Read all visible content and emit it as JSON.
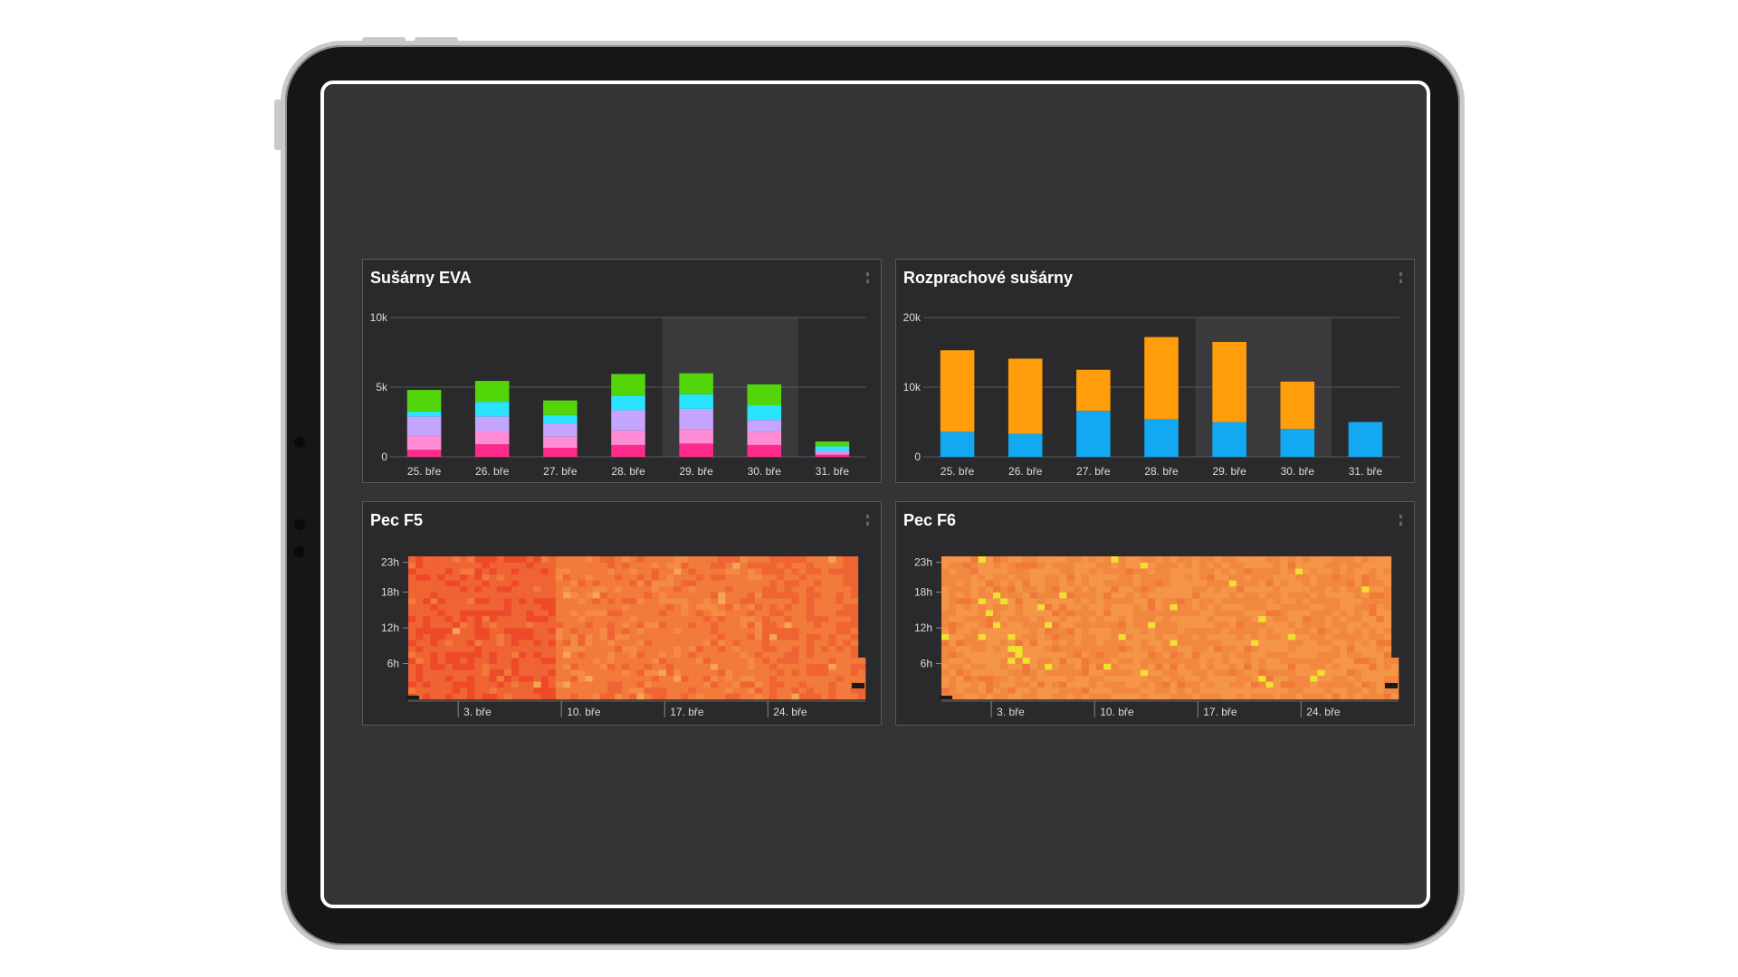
{
  "dashboard": {
    "panels": [
      {
        "title": "Sušárny EVA",
        "chart_data": {
          "type": "bar",
          "stacked": true,
          "categories": [
            "25. bře",
            "26. bře",
            "27. bře",
            "28. bře",
            "29. bře",
            "30. bře",
            "31. bře"
          ],
          "highlight_categories": [
            "29. bře",
            "30. bře"
          ],
          "y_ticks": [
            "0",
            "5k",
            "10k"
          ],
          "ylim": [
            0,
            10000
          ],
          "axis_tick_color": "#ff3b1f",
          "series": [
            {
              "color": "#ff2a8a",
              "values": [
                500,
                900,
                650,
                850,
                950,
                850,
                150
              ]
            },
            {
              "color": "#ff8cd6",
              "values": [
                1000,
                950,
                800,
                1050,
                1050,
                950,
                150
              ]
            },
            {
              "color": "#c4a6ff",
              "values": [
                1400,
                1050,
                950,
                1450,
                1450,
                850,
                150
              ]
            },
            {
              "color": "#29e3ff",
              "values": [
                350,
                1050,
                600,
                1050,
                1050,
                1050,
                300
              ]
            },
            {
              "color": "#52d60a",
              "values": [
                1550,
                1500,
                1050,
                1550,
                1500,
                1500,
                350
              ]
            }
          ]
        }
      },
      {
        "title": "Rozprachové sušárny",
        "chart_data": {
          "type": "bar",
          "stacked": true,
          "categories": [
            "25. bře",
            "26. bře",
            "27. bře",
            "28. bře",
            "29. bře",
            "30. bře",
            "31. bře"
          ],
          "highlight_categories": [
            "29. bře",
            "30. bře"
          ],
          "y_ticks": [
            "0",
            "10k",
            "20k"
          ],
          "ylim": [
            0,
            20000
          ],
          "axis_tick_color": "#ff9d0a",
          "series": [
            {
              "color": "#12a8f2",
              "values": [
                3600,
                3300,
                6600,
                5400,
                5000,
                4000,
                5000
              ]
            },
            {
              "color": "#ff9d0a",
              "values": [
                11700,
                10800,
                5900,
                11800,
                11500,
                6800,
                0
              ]
            }
          ]
        }
      },
      {
        "title": "Pec F5",
        "chart_data": {
          "type": "heatmap",
          "x_ticks": [
            "3. bře",
            "10. bře",
            "17. bře",
            "24. bře"
          ],
          "y_ticks": [
            "6h",
            "12h",
            "18h",
            "23h"
          ],
          "palette": [
            "#ee4a2a",
            "#f06434",
            "#f27a3a",
            "#f48a44",
            "#f7a552"
          ]
        }
      },
      {
        "title": "Pec F6",
        "chart_data": {
          "type": "heatmap",
          "x_ticks": [
            "3. bře",
            "10. bře",
            "17. bře",
            "24. bře"
          ],
          "y_ticks": [
            "6h",
            "12h",
            "18h",
            "23h"
          ],
          "palette": [
            "#f07838",
            "#f28840",
            "#f49548",
            "#f6a452",
            "#f8c040",
            "#f0e030"
          ]
        }
      }
    ]
  },
  "colors": {
    "screen_bg": "#343336",
    "panel_bg": "#2a292b",
    "grid": "#5a5a5c",
    "highlight_band": "#3a393c"
  }
}
